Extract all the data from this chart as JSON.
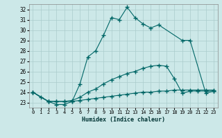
{
  "xlabel": "Humidex (Indice chaleur)",
  "bg_color": "#cce8e8",
  "grid_color": "#aacccc",
  "line_color": "#006666",
  "xlim": [
    -0.5,
    23.5
  ],
  "ylim": [
    22.5,
    32.5
  ],
  "xticks": [
    0,
    1,
    2,
    3,
    4,
    5,
    6,
    7,
    8,
    9,
    10,
    11,
    12,
    13,
    14,
    15,
    16,
    17,
    18,
    19,
    20,
    21,
    22,
    23
  ],
  "yticks": [
    23,
    24,
    25,
    26,
    27,
    28,
    29,
    30,
    31,
    32
  ],
  "series": [
    {
      "x": [
        0,
        1,
        2,
        3,
        4,
        5,
        6,
        7,
        8,
        9,
        10,
        11,
        12,
        13,
        14,
        15,
        16,
        19,
        20,
        22,
        23
      ],
      "y": [
        24.0,
        23.5,
        23.1,
        22.8,
        22.8,
        23.1,
        24.8,
        27.4,
        28.0,
        29.5,
        31.2,
        31.0,
        32.2,
        31.2,
        30.6,
        30.2,
        30.5,
        29.0,
        29.0,
        23.9,
        24.1
      ]
    },
    {
      "x": [
        0,
        2,
        3,
        4,
        5,
        6,
        7,
        8,
        9,
        10,
        11,
        12,
        13,
        14,
        15,
        16,
        17,
        18,
        19,
        20,
        21,
        22,
        23
      ],
      "y": [
        24.0,
        23.1,
        23.1,
        23.1,
        23.2,
        23.5,
        24.0,
        24.3,
        24.8,
        25.2,
        25.5,
        25.8,
        26.0,
        26.3,
        26.5,
        26.6,
        26.5,
        25.3,
        23.9,
        24.1,
        24.1,
        24.1,
        24.1
      ]
    },
    {
      "x": [
        0,
        2,
        3,
        4,
        5,
        6,
        7,
        8,
        9,
        10,
        11,
        12,
        13,
        14,
        15,
        16,
        17,
        18,
        19,
        20,
        21,
        22,
        23
      ],
      "y": [
        24.0,
        23.1,
        23.1,
        23.1,
        23.1,
        23.2,
        23.3,
        23.4,
        23.5,
        23.6,
        23.7,
        23.8,
        23.9,
        24.0,
        24.0,
        24.1,
        24.1,
        24.2,
        24.2,
        24.2,
        24.2,
        24.2,
        24.2
      ]
    }
  ]
}
